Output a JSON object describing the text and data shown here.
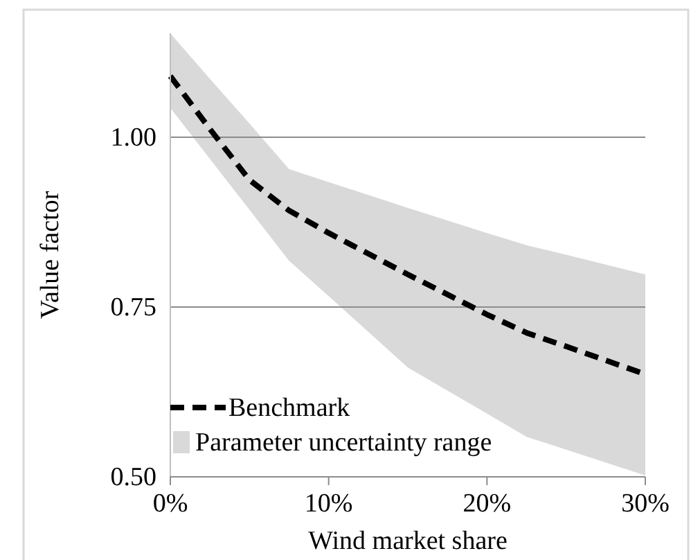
{
  "chart_data": {
    "type": "line",
    "xlabel": "Wind market share",
    "ylabel": "Value factor",
    "xlim": [
      0,
      30
    ],
    "xticks": [
      {
        "value": 0,
        "label": "0%"
      },
      {
        "value": 10,
        "label": "10%"
      },
      {
        "value": 20,
        "label": "20%"
      },
      {
        "value": 30,
        "label": "30%"
      }
    ],
    "ylim": [
      0.5,
      1.153
    ],
    "yticks": [
      {
        "value": 0.5,
        "label": "0.50"
      },
      {
        "value": 0.75,
        "label": "0.75"
      },
      {
        "value": 1,
        "label": "1.00"
      }
    ],
    "grid": "y",
    "legend": "bottom left",
    "line_style": "dashed",
    "annotations": [
      "Parameter uncertainty range"
    ],
    "series": [
      {
        "name": "Benchmark",
        "color": "#000000",
        "x": [
          0,
          2.5,
          5,
          7.5,
          10,
          15,
          20,
          22.5,
          25,
          30
        ],
        "values": [
          1.09,
          1.012,
          0.937,
          0.892,
          0.859,
          0.798,
          0.739,
          0.712,
          0.692,
          0.651
        ],
        "lower": [
          1.043,
          0.968,
          0.893,
          0.818,
          0.766,
          0.661,
          0.593,
          0.559,
          0.54,
          0.502
        ],
        "upper": [
          1.153,
          1.086,
          1.02,
          0.953,
          0.934,
          0.896,
          0.859,
          0.841,
          0.827,
          0.798
        ]
      }
    ]
  }
}
